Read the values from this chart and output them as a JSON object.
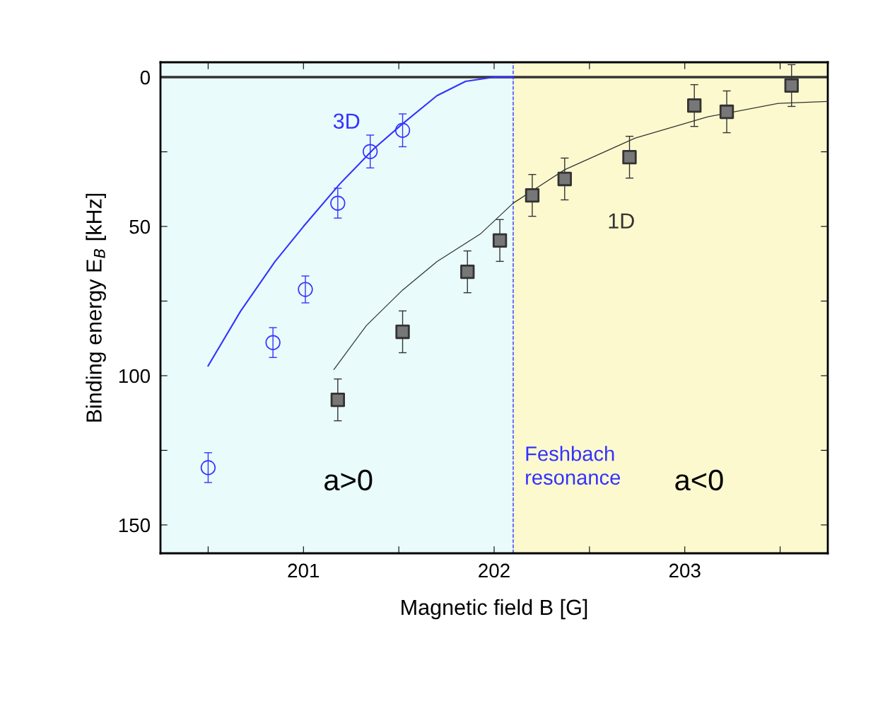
{
  "chart_data": {
    "type": "scatter",
    "xlabel": "Magnetic field B [G]",
    "ylabel": "Binding energy E$_{B}$ [kHz]",
    "xlim": [
      200.25,
      203.75
    ],
    "ylim": [
      159.5,
      -5
    ],
    "xticks": [
      {
        "value": 200.5,
        "label": null
      },
      201,
      {
        "value": 201.5,
        "label": null
      },
      202,
      {
        "value": 202.5,
        "label": null
      },
      203,
      {
        "value": 203.5,
        "label": null
      }
    ],
    "yticks": [
      0,
      {
        "value": 25,
        "label": null
      },
      50,
      {
        "value": 75,
        "label": null
      },
      100,
      {
        "value": 125,
        "label": null
      },
      150
    ],
    "grid": false,
    "legend": false,
    "series": [
      {
        "type": "line",
        "name": "3D",
        "color": "#3333ff",
        "marker": "none",
        "x": [
          200.5,
          200.67,
          200.85,
          201.0,
          201.19,
          201.37,
          201.52,
          201.7,
          201.85,
          202.0,
          202.1
        ],
        "values": [
          96.7,
          78.4,
          61.8,
          50,
          35.8,
          23.9,
          15.6,
          6.2,
          1.4,
          0,
          0
        ]
      },
      {
        "type": "line",
        "name": "1D",
        "color": "#333333",
        "marker": "none",
        "x": [
          201.16,
          201.33,
          201.52,
          201.7,
          201.93,
          202.1,
          202.37,
          202.74,
          203.12,
          203.49,
          203.75
        ],
        "values": [
          97.9,
          83.2,
          71.3,
          61.8,
          52.4,
          42.2,
          31.0,
          20.4,
          13.3,
          8.8,
          8.1
        ]
      },
      {
        "color": "#3333ff",
        "marker": "circle",
        "x": [
          200.5,
          200.84,
          201.01,
          201.18,
          201.35,
          201.52
        ],
        "values": [
          130.8,
          88.9,
          71.1,
          42.2,
          24.9,
          17.8
        ],
        "errors": [
          5,
          5,
          4.5,
          5,
          5.5,
          5.5
        ]
      },
      {
        "color": "#333333",
        "marker": "square",
        "x": [
          201.18,
          201.52,
          201.86,
          202.03,
          202.2,
          202.37,
          202.71,
          203.05,
          203.22,
          203.56
        ],
        "values": [
          108.1,
          85.3,
          65.2,
          54.7,
          39.6,
          34.1,
          26.8,
          9.5,
          11.6,
          2.8
        ],
        "errors": [
          7,
          7,
          7,
          7,
          7,
          7,
          7,
          7,
          7,
          7
        ]
      }
    ],
    "ref_lines": [
      {
        "axis": "y",
        "value": 0,
        "color": "#333333",
        "line_style": "solid"
      },
      {
        "axis": "x",
        "value": 202.1,
        "label": "Feshbach\nresonance",
        "color": "#3333ff",
        "line_style": "dashed"
      }
    ],
    "bands": [
      {
        "axis": "x",
        "from": 200.25,
        "to": 202.1,
        "label": "a>0",
        "color": "#e9fbfb"
      },
      {
        "axis": "x",
        "from": 202.1,
        "to": 203.75,
        "label": "a<0",
        "color": "#fdf9cf"
      }
    ]
  }
}
